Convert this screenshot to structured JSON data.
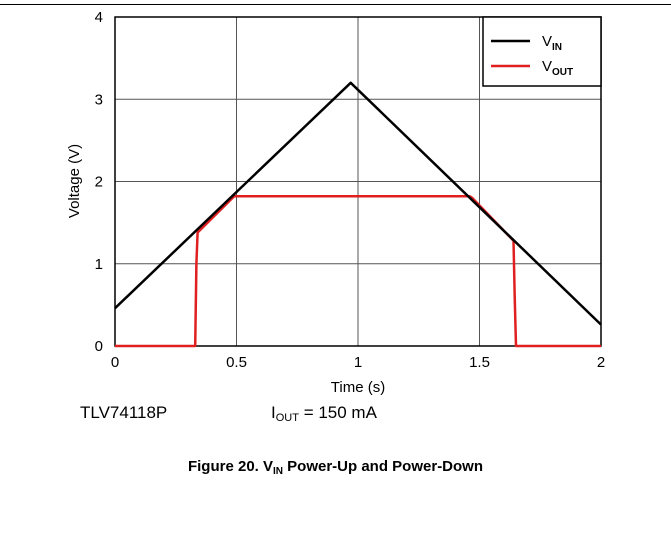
{
  "chart_data": {
    "type": "line",
    "title": "",
    "xlabel": "Time (s)",
    "ylabel": "Voltage (V)",
    "xlim": [
      0,
      2
    ],
    "ylim": [
      0,
      4
    ],
    "xticks": [
      0,
      0.5,
      1,
      1.5,
      2
    ],
    "xtick_labels": [
      "0",
      "0.5",
      "1",
      "1.5",
      "2"
    ],
    "yticks": [
      0,
      1,
      2,
      3,
      4
    ],
    "ytick_labels": [
      "0",
      "1",
      "2",
      "3",
      "4"
    ],
    "grid": true,
    "legend_position": "top-right",
    "series": [
      {
        "name_main": "V",
        "name_sub": "IN",
        "color": "#000000",
        "x": [
          0,
          0.97,
          2
        ],
        "y": [
          0.46,
          3.2,
          0.26
        ]
      },
      {
        "name_main": "V",
        "name_sub": "OUT",
        "color": "#e02020",
        "x": [
          0,
          0.33,
          0.335,
          0.34,
          0.49,
          0.5,
          1.46,
          1.47,
          1.64,
          1.645,
          1.65,
          2
        ],
        "y": [
          0,
          0,
          1.0,
          1.38,
          1.82,
          1.82,
          1.82,
          1.8,
          1.28,
          0.6,
          0,
          0
        ]
      }
    ]
  },
  "notes": {
    "device": "TLV74118P",
    "condition_main": "I",
    "condition_sub": "OUT",
    "condition_rest": " = 150 mA"
  },
  "caption": {
    "prefix": "Figure 20. V",
    "sub": "IN",
    "suffix": " Power-Up and Power-Down"
  }
}
